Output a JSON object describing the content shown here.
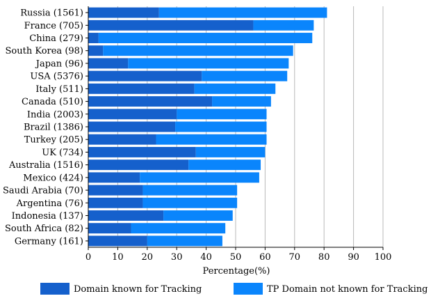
{
  "chart_data": {
    "type": "bar",
    "orientation": "horizontal",
    "stacked": true,
    "categories": [
      "Russia (1561)",
      "France (705)",
      "China (279)",
      "South Korea (98)",
      "Japan (96)",
      "USA (5376)",
      "Italy (511)",
      "Canada (510)",
      "India (2003)",
      "Brazil (1386)",
      "Turkey (205)",
      "UK (734)",
      "Australia (1516)",
      "Mexico (424)",
      "Saudi Arabia (70)",
      "Argentina (76)",
      "Indonesia (137)",
      "South Africa (82)",
      "Germany (161)"
    ],
    "series": [
      {
        "name": "Domain known for Tracking",
        "color": "#1560cc",
        "values": [
          24,
          56,
          3.5,
          5,
          13.5,
          38.5,
          36,
          42,
          30,
          29.5,
          23,
          36.5,
          34,
          17.5,
          18.5,
          18.5,
          25.5,
          14.5,
          20
        ]
      },
      {
        "name": "TP Domain not known for Tracking",
        "color": "#0a85fc",
        "values": [
          57,
          20.5,
          72.5,
          64.5,
          54.5,
          29,
          27.5,
          20,
          30.5,
          31,
          37.5,
          23.5,
          24.5,
          40.5,
          32,
          32,
          23.5,
          32,
          25.5
        ]
      }
    ],
    "xlabel": "Percentage(%)",
    "ylabel": "",
    "xlim": [
      0,
      100
    ],
    "xticks": [
      "0",
      "10",
      "20",
      "30",
      "40",
      "50",
      "60",
      "70",
      "80",
      "90",
      "100"
    ],
    "grid": "vertical",
    "legend_position": "bottom"
  }
}
